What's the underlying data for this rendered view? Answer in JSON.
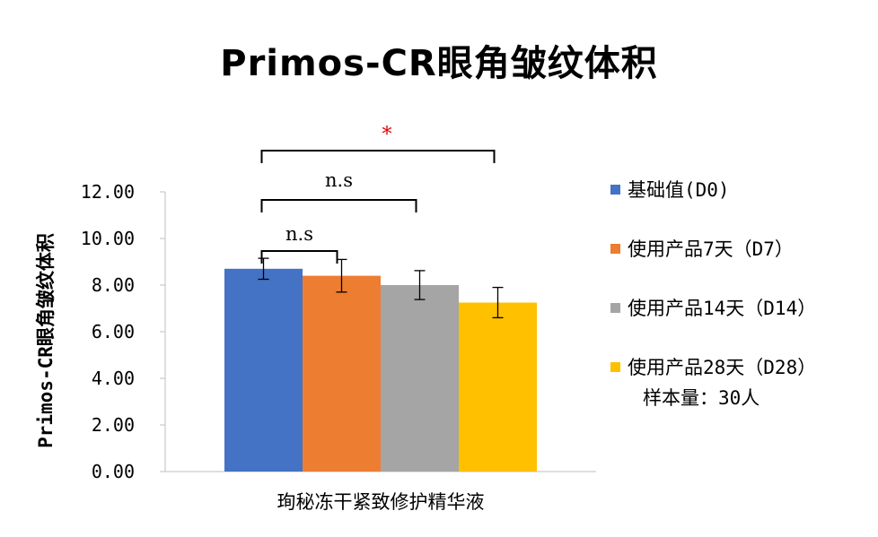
{
  "chart_data": {
    "type": "bar",
    "title": "Primos-CR眼角皱纹体积",
    "ylabel": "Primos-CR眼角皱纹体积",
    "xlabel": "",
    "categories": [
      "珣秘冻干紧致修护精华液"
    ],
    "ylim": [
      0,
      12
    ],
    "yticks": [
      "0.00",
      "2.00",
      "4.00",
      "6.00",
      "8.00",
      "10.00",
      "12.00"
    ],
    "grid": false,
    "legend_position": "right",
    "series": [
      {
        "name": "基础值(D0)",
        "color": "#4472C4",
        "values": [
          8.7
        ],
        "error": [
          0.45
        ]
      },
      {
        "name": "使用产品7天（D7）",
        "color": "#ED7D31",
        "values": [
          8.4
        ],
        "error": [
          0.7
        ]
      },
      {
        "name": "使用产品14天（D14）",
        "color": "#A5A5A5",
        "values": [
          8.0
        ],
        "error": [
          0.62
        ]
      },
      {
        "name": "使用产品28天（D28）",
        "color": "#FFC000",
        "values": [
          7.25
        ],
        "error": [
          0.65
        ]
      }
    ],
    "annotations": [
      {
        "from": 0,
        "to": 1,
        "label": "n.s",
        "color": "#000000"
      },
      {
        "from": 0,
        "to": 2,
        "label": "n.s",
        "color": "#000000"
      },
      {
        "from": 0,
        "to": 3,
        "label": "*",
        "color": "#E00000"
      }
    ],
    "note": "样本量：30人"
  }
}
